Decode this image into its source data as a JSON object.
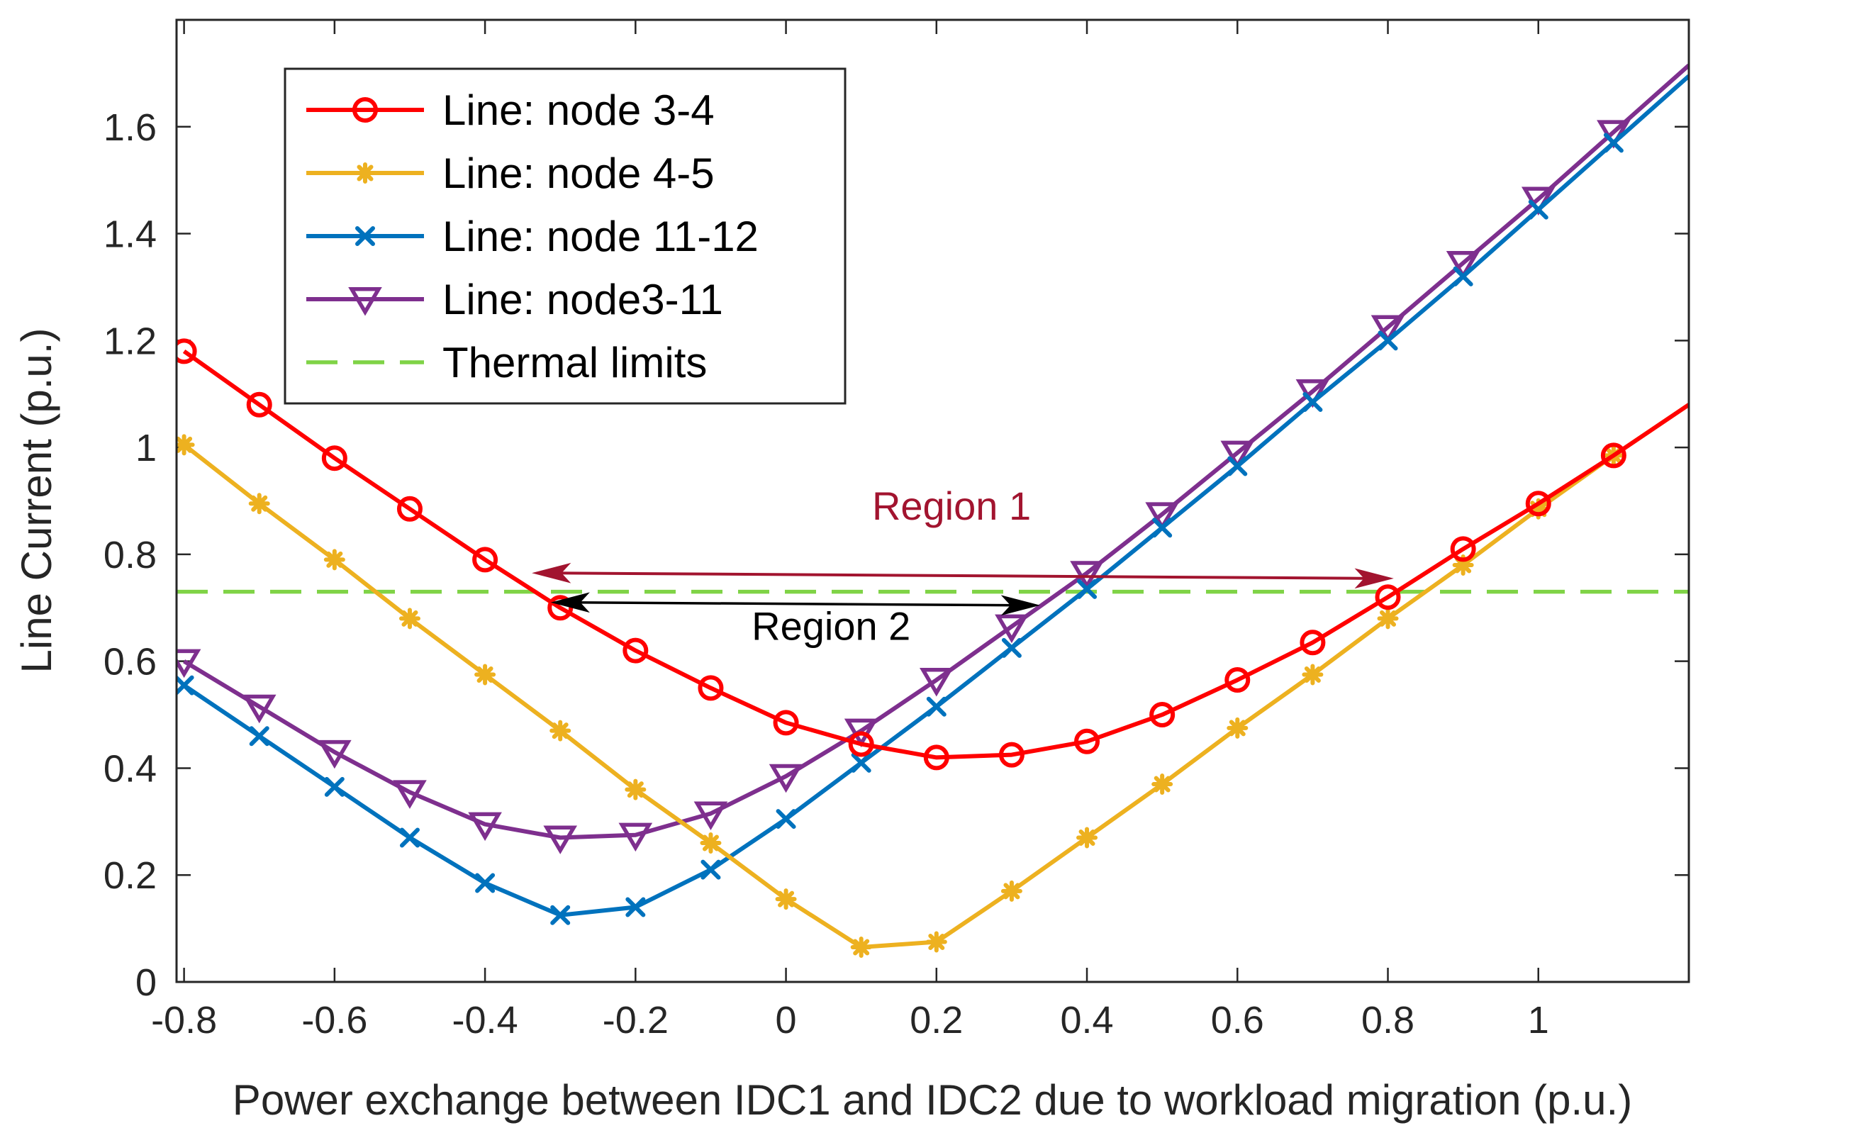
{
  "chart_data": {
    "type": "line",
    "title": "",
    "xlabel": "Power exchange between IDC1 and IDC2 due to workload migration (p.u.)",
    "ylabel": "Line Current (p.u.)",
    "xlim": [
      -0.81,
      1.2
    ],
    "ylim": [
      0,
      1.8
    ],
    "grid": false,
    "x_ticks": [
      -0.8,
      -0.6,
      -0.4,
      -0.2,
      0,
      0.2,
      0.4,
      0.6,
      0.8,
      1
    ],
    "x_tick_labels": [
      "-0.8",
      "-0.6",
      "-0.4",
      "-0.2",
      "0",
      "0.2",
      "0.4",
      "0.6",
      "0.8",
      "1"
    ],
    "y_ticks": [
      0,
      0.2,
      0.4,
      0.6,
      0.8,
      1,
      1.2,
      1.4,
      1.6
    ],
    "y_tick_labels": [
      "0",
      "0.2",
      "0.4",
      "0.6",
      "0.8",
      "1",
      "1.2",
      "1.4",
      "1.6"
    ],
    "legend_position": "top-left",
    "x": [
      -0.8,
      -0.7,
      -0.6,
      -0.5,
      -0.4,
      -0.3,
      -0.2,
      -0.1,
      0,
      0.1,
      0.2,
      0.3,
      0.4,
      0.5,
      0.6,
      0.7,
      0.8,
      0.9,
      1.0,
      1.1
    ],
    "series": [
      {
        "name": "Line: node 3-4",
        "color": "#ff0000",
        "marker": "circle",
        "values": [
          1.18,
          1.08,
          0.98,
          0.885,
          0.79,
          0.7,
          0.62,
          0.55,
          0.485,
          0.445,
          0.42,
          0.425,
          0.45,
          0.5,
          0.565,
          0.635,
          0.72,
          0.81,
          0.895,
          0.985
        ],
        "end_x": 1.2,
        "end_y": 1.08
      },
      {
        "name": "Line: node 4-5",
        "color": "#edb120",
        "marker": "asterisk",
        "values": [
          1.005,
          0.895,
          0.79,
          0.68,
          0.575,
          0.47,
          0.36,
          0.26,
          0.155,
          0.065,
          0.075,
          0.17,
          0.27,
          0.37,
          0.475,
          0.575,
          0.68,
          0.78,
          0.885,
          0.985
        ],
        "end_x": 1.2,
        "end_y": 1.08
      },
      {
        "name": "Line: node 11-12",
        "color": "#0072bd",
        "marker": "x",
        "values": [
          0.555,
          0.46,
          0.365,
          0.27,
          0.185,
          0.125,
          0.14,
          0.21,
          0.305,
          0.41,
          0.515,
          0.625,
          0.735,
          0.85,
          0.965,
          1.085,
          1.2,
          1.32,
          1.445,
          1.57
        ],
        "end_x": 1.2,
        "end_y": 1.695
      },
      {
        "name": "Line: node3-11",
        "color": "#7e2f8e",
        "marker": "triangle-down",
        "values": [
          0.6,
          0.515,
          0.43,
          0.355,
          0.295,
          0.27,
          0.275,
          0.315,
          0.385,
          0.47,
          0.565,
          0.665,
          0.765,
          0.875,
          0.99,
          1.105,
          1.225,
          1.345,
          1.465,
          1.59
        ],
        "end_x": 1.2,
        "end_y": 1.715
      }
    ],
    "reference_lines": [
      {
        "name": "Thermal limits",
        "color": "#7fd346",
        "style": "dashed",
        "y": 0.73
      }
    ],
    "annotations": [
      {
        "text": "Region 1",
        "color": "#a2142f",
        "x": 0.22,
        "y": 0.865,
        "arrow_from": -0.335,
        "arrow_to": 0.805,
        "arrow_y_left": 0.765,
        "arrow_y_right": 0.755
      },
      {
        "text": "Region 2",
        "color": "#000000",
        "x": 0.06,
        "y": 0.64,
        "arrow_from": -0.31,
        "arrow_to": 0.335,
        "arrow_y": 0.71
      }
    ]
  }
}
